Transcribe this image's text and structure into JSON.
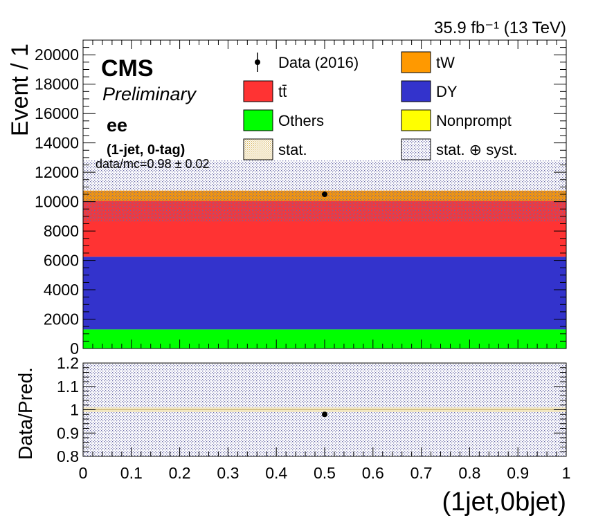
{
  "lumi_label": "35.9 fb⁻¹ (13 TeV)",
  "cms_label": "CMS",
  "prelim_label": "Preliminary",
  "channel_label": "ee",
  "category_label": "(1-jet, 0-tag)",
  "ratio_text": "data/mc=0.98 ± 0.02",
  "legend": [
    {
      "label": "Data (2016)",
      "kind": "marker",
      "color": "#000000"
    },
    {
      "label": "tW",
      "kind": "box",
      "color": "#ff9900"
    },
    {
      "label": "tt̄",
      "kind": "box",
      "color": "#ff3333"
    },
    {
      "label": "DY",
      "kind": "box",
      "color": "#3333cc"
    },
    {
      "label": "Others",
      "kind": "box",
      "color": "#00ff00"
    },
    {
      "label": "Nonprompt",
      "kind": "box",
      "color": "#ffff00"
    },
    {
      "label": "stat.",
      "kind": "hatch-stat",
      "color": "#e8d8a0"
    },
    {
      "label": "stat. ⊕ syst.",
      "kind": "hatch-syst",
      "color": "#6666aa"
    }
  ],
  "chart_data": [
    {
      "type": "bar",
      "stacked": true,
      "x": [
        0.5
      ],
      "x_range": [
        0,
        1
      ],
      "ylabel": "Event / 1",
      "ylim": [
        0,
        21000
      ],
      "y_ticks": [
        0,
        2000,
        4000,
        6000,
        8000,
        10000,
        12000,
        14000,
        16000,
        18000,
        20000
      ],
      "series": [
        {
          "name": "Others",
          "values": [
            1300
          ],
          "color": "#00ff00"
        },
        {
          "name": "DY",
          "values": [
            4950
          ],
          "color": "#3333cc"
        },
        {
          "name": "tt̄",
          "values": [
            3800
          ],
          "color": "#ff3333"
        },
        {
          "name": "tW",
          "values": [
            700
          ],
          "color": "#ff9900"
        },
        {
          "name": "Nonprompt",
          "values": [
            0
          ],
          "color": "#ffff00"
        }
      ],
      "total_prediction": 10750,
      "stat_syst_band": [
        8650,
        12800
      ],
      "data": [
        {
          "x": 0.5,
          "y": 10500
        }
      ]
    },
    {
      "type": "scatter",
      "xlabel": "(1jet,0bjet)",
      "ylabel": "Data/Pred.",
      "xlim": [
        0,
        1
      ],
      "ylim": [
        0.8,
        1.2
      ],
      "x_ticks": [
        "0",
        "0.1",
        "0.2",
        "0.3",
        "0.4",
        "0.5",
        "0.6",
        "0.7",
        "0.8",
        "0.9",
        "1"
      ],
      "y_ticks": [
        "0.8",
        "0.9",
        "1",
        "1.1",
        "1.2"
      ],
      "points": [
        {
          "x": 0.5,
          "y": 0.98
        }
      ],
      "stat_band": [
        0.99,
        1.01
      ]
    }
  ]
}
